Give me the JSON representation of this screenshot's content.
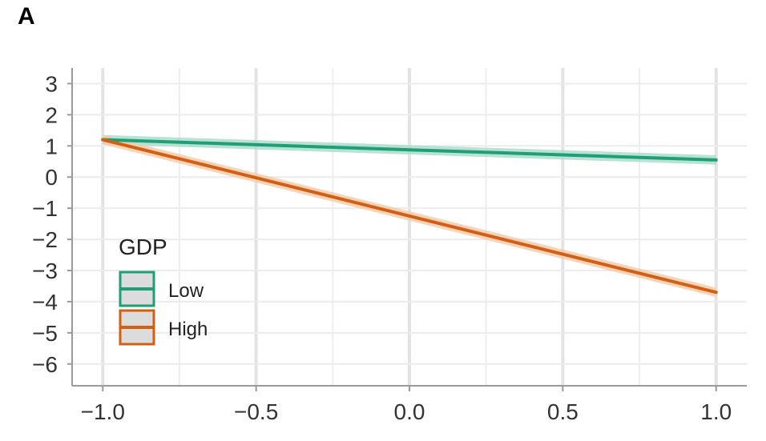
{
  "panel_label": "A",
  "chart_data": {
    "type": "line",
    "xlim": [
      -1.1,
      1.1
    ],
    "ylim": [
      -6.7,
      3.5
    ],
    "x_ticks": [
      -1.0,
      -0.5,
      0.0,
      0.5,
      1.0
    ],
    "x_tick_labels": [
      "−1.0",
      "−0.5",
      "0.0",
      "0.5",
      "1.0"
    ],
    "y_ticks": [
      3,
      2,
      1,
      0,
      -1,
      -2,
      -3,
      -4,
      -5,
      -6
    ],
    "y_tick_labels": [
      "3",
      "2",
      "1",
      "0",
      "−1",
      "−2",
      "−3",
      "−4",
      "−5",
      "−6"
    ],
    "grid": true,
    "legend": {
      "title": "GDP",
      "placement": "bottom-left"
    },
    "series": [
      {
        "name": "Low",
        "color": "#1f9e77",
        "ribbon_color": "#a6dcc9",
        "x": [
          -1.0,
          1.0
        ],
        "y": [
          1.2,
          0.55
        ],
        "ci": 0.15
      },
      {
        "name": "High",
        "color": "#d26010",
        "ribbon_color": "#f5c9a8",
        "x": [
          -1.0,
          1.0
        ],
        "y": [
          1.2,
          -3.7
        ],
        "ci": 0.15
      }
    ]
  }
}
